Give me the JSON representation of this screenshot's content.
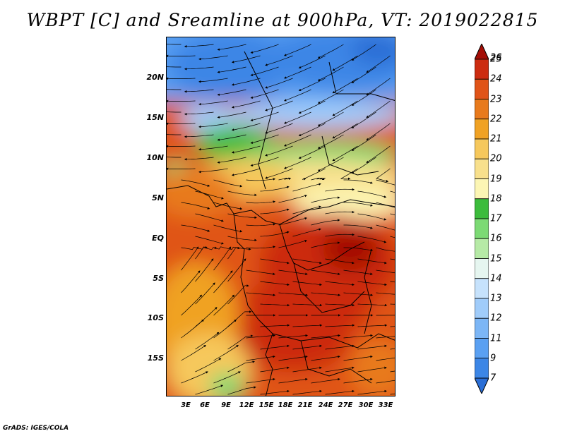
{
  "title": "WBPT [C] and Sreamline at 900hPa, VT: 2019022815",
  "credit": "GrADS: IGES/COLA",
  "lat_labels": [
    "20N",
    "15N",
    "10N",
    "5N",
    "EQ",
    "5S",
    "10S",
    "15S"
  ],
  "lon_labels": [
    "3E",
    "6E",
    "9E",
    "12E",
    "15E",
    "18E",
    "21E",
    "24E",
    "27E",
    "30E",
    "33E"
  ],
  "colorbar": {
    "labels": [
      "7",
      "9",
      "11",
      "12",
      "13",
      "14",
      "15",
      "16",
      "17",
      "18",
      "19",
      "20",
      "21",
      "22",
      "23",
      "24",
      "25",
      "26"
    ],
    "colors": [
      "#2a6ed6",
      "#3c86e6",
      "#5aa0f2",
      "#7cb6f6",
      "#a0ccfa",
      "#c6e2fc",
      "#e6f6f0",
      "#b6eaa6",
      "#7cda74",
      "#3cbc3c",
      "#fcf6b4",
      "#f8e08c",
      "#f6c85c",
      "#f0a224",
      "#e87a1c",
      "#e05418",
      "#cc2c10",
      "#a40e06"
    ]
  },
  "map": {
    "extent": {
      "lon_min": 0,
      "lon_max": 35,
      "lat_min": -20,
      "lat_max": 25
    },
    "variable": "WBPT",
    "units": "C",
    "level": "900hPa",
    "valid_time": "2019022815"
  }
}
